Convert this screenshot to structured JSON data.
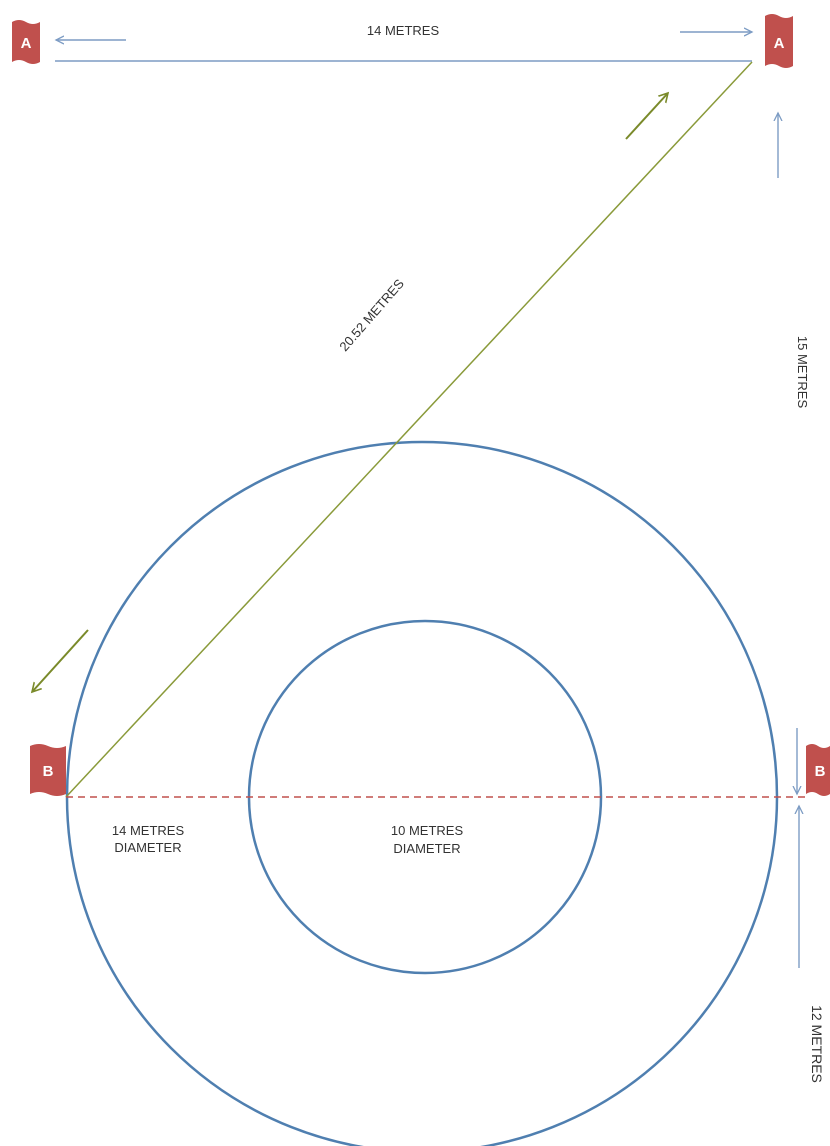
{
  "labels": {
    "top_distance": "14 METRES",
    "diagonal_distance": "20.52 METRES",
    "right_upper_distance": "15 METRES",
    "right_lower_distance": "12 METRES",
    "outer_circle_line1": "14 METRES",
    "outer_circle_line2": "DIAMETER",
    "inner_circle_line1": "10 METRES",
    "inner_circle_line2": "DIAMETER"
  },
  "markers": {
    "top_left": "A",
    "top_right": "A",
    "bottom_left": "B",
    "bottom_right": "B"
  },
  "colors": {
    "circle": "#4f7fb0",
    "diagonal": "#8a9a3a",
    "top_line": "#7d9cc4",
    "dashed": "#c0504d",
    "marker": "#c0504d",
    "arrow_blue": "#7d9cc4",
    "arrow_green": "#7a8a2a"
  }
}
